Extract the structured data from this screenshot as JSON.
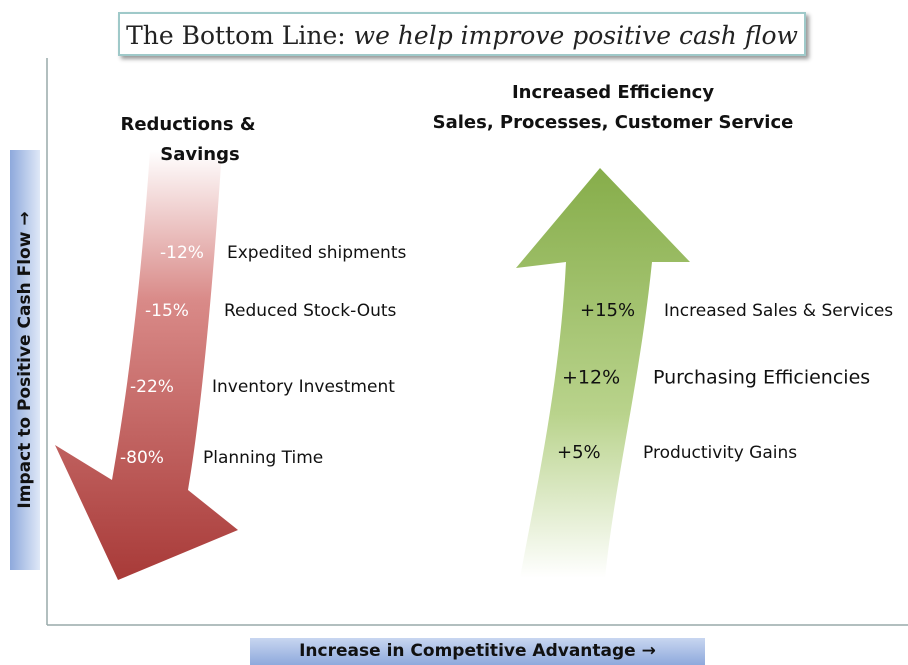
{
  "title": {
    "main": "The Bottom Line:",
    "emphasis": "we help improve positive cash flow"
  },
  "y_axis_label": "Impact to Positive Cash Flow →",
  "x_axis_label": "Increase in Competitive Advantage →",
  "reductions": {
    "heading": [
      "Reductions &",
      "Savings"
    ],
    "items": [
      {
        "value": "-12%",
        "label": "Expedited shipments"
      },
      {
        "value": "-15%",
        "label": "Reduced Stock-Outs"
      },
      {
        "value": "-22%",
        "label": "Inventory Investment"
      },
      {
        "value": "-80%",
        "label": "Planning Time"
      }
    ]
  },
  "efficiency": {
    "heading": [
      "Increased Efficiency",
      "Sales, Processes, Customer Service"
    ],
    "items": [
      {
        "value": "+15%",
        "label": "Increased Sales & Services"
      },
      {
        "value": "+12%",
        "label": "Purchasing Efficiencies"
      },
      {
        "value": "+5%",
        "label": "Productivity Gains"
      }
    ]
  }
}
